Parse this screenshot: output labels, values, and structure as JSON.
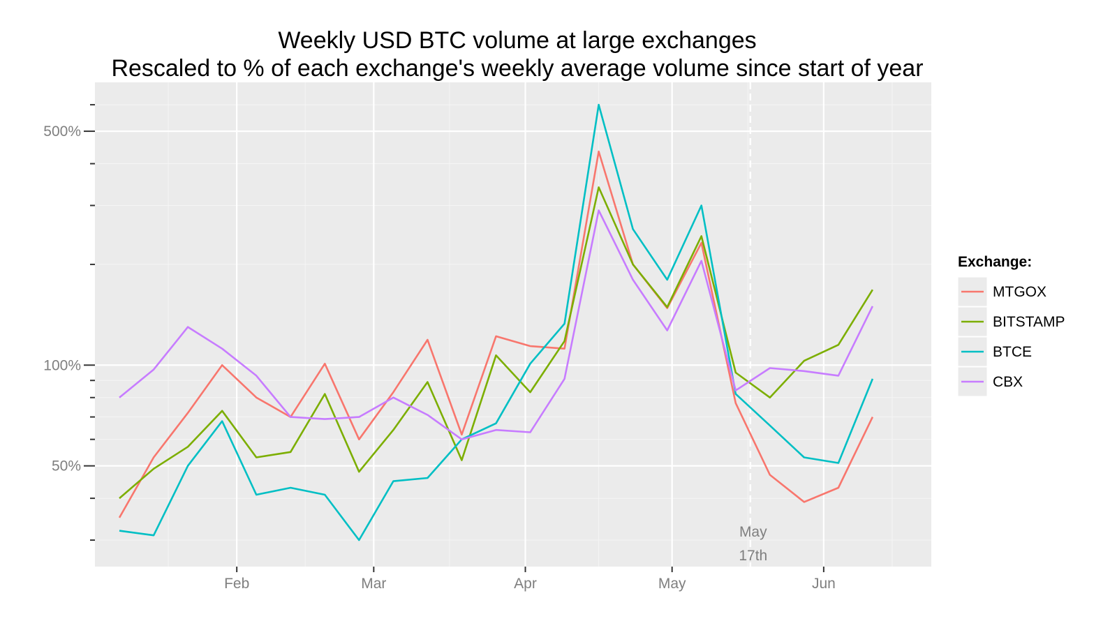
{
  "chart_data": {
    "type": "line",
    "title": "Weekly USD BTC volume at large exchanges",
    "subtitle": "Rescaled to % of each exchange's weekly average volume since start of year",
    "xlabel": "",
    "ylabel": "",
    "yscale": "log",
    "ylim": [
      25,
      700
    ],
    "xlim": [
      "2013-01-03",
      "2013-06-23"
    ],
    "y_ticks": [
      {
        "value": 50,
        "label": "50%"
      },
      {
        "value": 100,
        "label": "100%"
      },
      {
        "value": 500,
        "label": "500%"
      }
    ],
    "y_minor_ticks": [
      30,
      40,
      60,
      70,
      80,
      90,
      200,
      300,
      400,
      600
    ],
    "x_ticks": [
      {
        "date": "2013-02-01",
        "label": "Feb"
      },
      {
        "date": "2013-03-01",
        "label": "Mar"
      },
      {
        "date": "2013-04-01",
        "label": "Apr"
      },
      {
        "date": "2013-05-01",
        "label": "May"
      },
      {
        "date": "2013-06-01",
        "label": "Jun"
      }
    ],
    "grid": true,
    "legend": {
      "title": "Exchange:",
      "position": "right"
    },
    "x": [
      "2013-01-08",
      "2013-01-15",
      "2013-01-22",
      "2013-01-29",
      "2013-02-05",
      "2013-02-12",
      "2013-02-19",
      "2013-02-26",
      "2013-03-05",
      "2013-03-12",
      "2013-03-19",
      "2013-03-26",
      "2013-04-02",
      "2013-04-09",
      "2013-04-16",
      "2013-04-23",
      "2013-04-30",
      "2013-05-07",
      "2013-05-14",
      "2013-05-21",
      "2013-05-28",
      "2013-06-04",
      "2013-06-11"
    ],
    "series": [
      {
        "name": "MTGOX",
        "color": "#F8766D",
        "values": [
          35,
          53,
          72,
          100,
          80,
          70,
          101,
          60,
          83,
          119,
          62,
          122,
          114,
          112,
          435,
          200,
          148,
          232,
          77,
          47,
          39,
          43,
          70
        ]
      },
      {
        "name": "BITSTAMP",
        "color": "#7CAE00",
        "values": [
          40,
          49,
          57,
          73,
          53,
          55,
          82,
          48,
          64,
          89,
          52,
          107,
          83,
          118,
          340,
          200,
          149,
          243,
          95,
          80,
          103,
          115,
          168
        ]
      },
      {
        "name": "BTCE",
        "color": "#00BFC4",
        "values": [
          32,
          31,
          50,
          68,
          41,
          43,
          41,
          30,
          45,
          46,
          60,
          67,
          101,
          133,
          600,
          255,
          180,
          300,
          82,
          66,
          53,
          51,
          91
        ]
      },
      {
        "name": "CBX",
        "color": "#C77CFF",
        "values": [
          80,
          97,
          130,
          112,
          93,
          70,
          69,
          70,
          80,
          71,
          60,
          64,
          63,
          91,
          290,
          180,
          127,
          205,
          84,
          98,
          96,
          93,
          150
        ]
      }
    ],
    "annotations": [
      {
        "date": "2013-05-17",
        "label_line1": "May",
        "label_line2": "17th",
        "style": "dashed-vertical-line"
      }
    ]
  },
  "colors": {
    "panel_background": "#EBEBEB",
    "grid_major": "#FFFFFF",
    "grid_minor": "#F5F5F5"
  }
}
